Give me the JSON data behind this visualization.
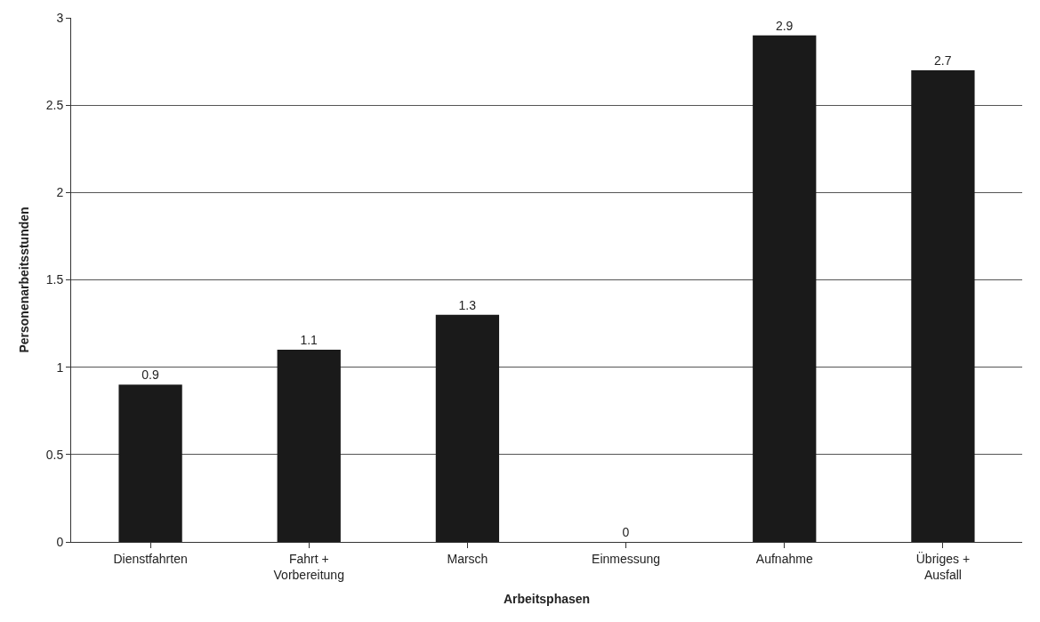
{
  "chart_data": {
    "type": "bar",
    "xlabel": "Arbeitsphasen",
    "ylabel": "Personenarbeitsstunden",
    "categories": [
      "Dienstfahrten",
      "Fahrt +\nVorbereitung",
      "Marsch",
      "Einmessung",
      "Aufnahme",
      "Übriges +\nAusfall"
    ],
    "values": [
      0.9,
      1.1,
      1.3,
      0,
      2.9,
      2.7
    ],
    "color": "#1a1a1a",
    "ylim": [
      0,
      3
    ],
    "yticks": [
      0,
      0.5,
      1,
      1.5,
      2,
      2.5,
      3
    ],
    "grid": "y",
    "data_labels": true
  }
}
